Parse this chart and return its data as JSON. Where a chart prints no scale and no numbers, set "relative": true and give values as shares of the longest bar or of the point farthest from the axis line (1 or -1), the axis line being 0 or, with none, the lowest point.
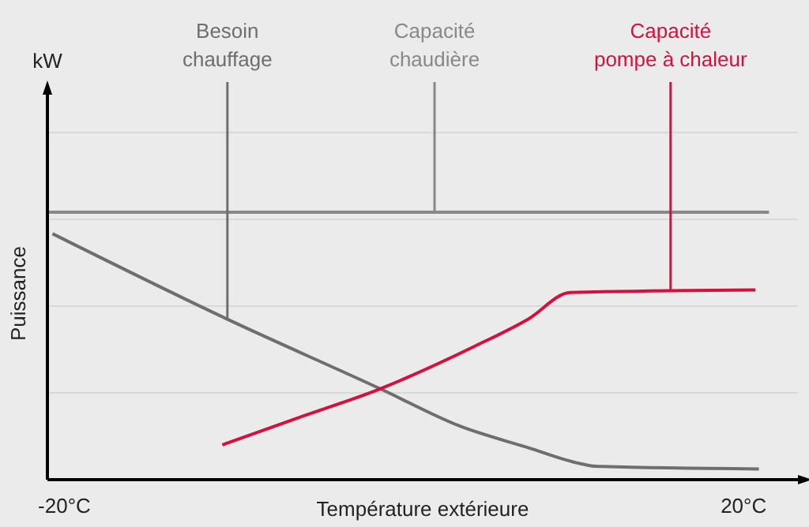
{
  "chart_data": {
    "type": "line",
    "relative": true,
    "xlabel": "Température extérieure",
    "ylabel": "Puissance",
    "xlim": [
      -21,
      23.2
    ],
    "xticks": [
      {
        "value": -20,
        "label": "-20°C"
      },
      {
        "value": 20,
        "label": "20°C"
      }
    ],
    "grid": "y",
    "tick_labels": "x",
    "series": [
      {
        "color": "#888888",
        "x": [
          -21,
          21.5
        ],
        "values": [
          1,
          1
        ]
      },
      {
        "color": "#6e6e6e",
        "x": [
          -20.7,
          -10.4,
          -1.4,
          3.3,
          7.3,
          10.4,
          11.3,
          20.9
        ],
        "values": [
          0.92,
          0.6,
          0.34,
          0.2,
          0.12,
          0.06,
          0.05,
          0.04
        ]
      },
      {
        "color": "#d4103c",
        "x": [
          -10.7,
          -6.3,
          -1.4,
          4.2,
          7.3,
          9.8,
          20.7
        ],
        "values": [
          0.13,
          0.23,
          0.34,
          0.5,
          0.6,
          0.7,
          0.71
        ]
      }
    ],
    "annotations": [
      "kW",
      {
        "text": "Besoin chauffage",
        "x": -10.4,
        "y": 0.6
      },
      {
        "text": "Capacité chaudière",
        "x": 1.8,
        "y": 1
      },
      {
        "text": "Capacité pompe à chaleur",
        "x": 15.7,
        "y": 0.71
      }
    ]
  }
}
